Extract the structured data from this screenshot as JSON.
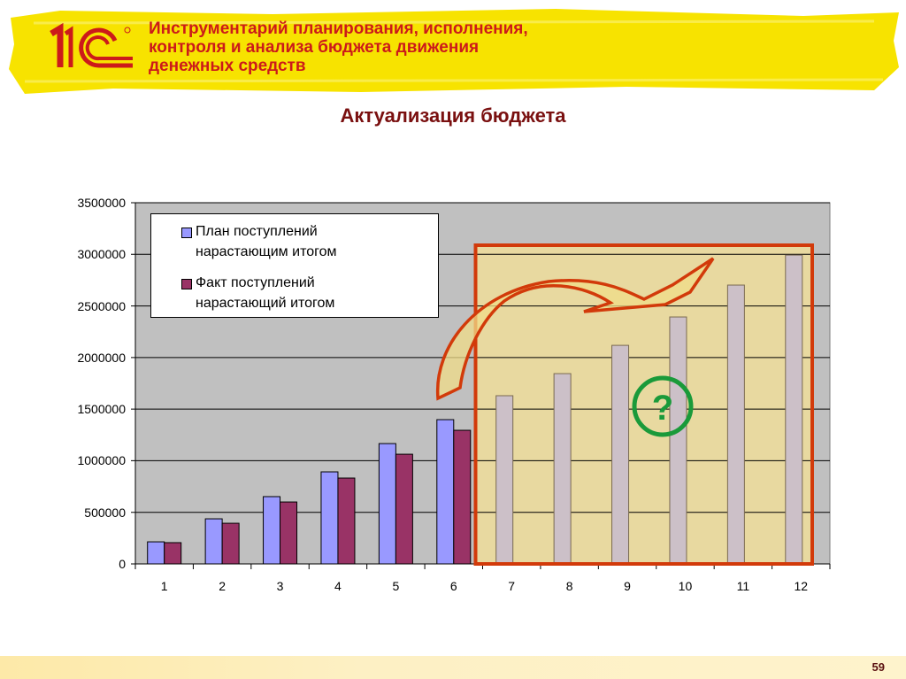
{
  "header": {
    "logo_text": "1С",
    "title_lines": [
      "Инструментарий планирования, исполнения,",
      "контроля и анализа бюджета движения",
      "денежных средств"
    ]
  },
  "slide": {
    "subtitle": "Актуализация бюджета",
    "page_number": "59"
  },
  "colors": {
    "banner": "#f7e300",
    "title_text": "#cc1a1a",
    "subtitle_text": "#7a1010",
    "plan_bar": "#9999ff",
    "fact_bar": "#993366",
    "forecast_bar": "#ccc0c8",
    "plot_bg": "#c0c0c0",
    "highlight_box": "#d23a0a",
    "highlight_fill": "#e8d9a0",
    "question_icon": "#1a9a3a"
  },
  "chart_data": {
    "type": "bar",
    "title": "Актуализация бюджета",
    "xlabel": "",
    "ylabel": "",
    "categories": [
      "1",
      "2",
      "3",
      "4",
      "5",
      "6",
      "7",
      "8",
      "9",
      "10",
      "11",
      "12"
    ],
    "series": [
      {
        "name": "План поступлений нарастающим итогом",
        "values": [
          214000,
          437000,
          652000,
          892000,
          1166000,
          1398000,
          1630000,
          1844000,
          2118000,
          2393000,
          2702000,
          2993000
        ]
      },
      {
        "name": "Факт поступлений нарастающий итогом",
        "values": [
          206000,
          394000,
          600000,
          832000,
          1063000,
          1295000,
          null,
          null,
          null,
          null,
          null,
          null
        ]
      }
    ],
    "ylim": [
      0,
      3500000
    ],
    "yticks": [
      "0",
      "500000",
      "1000000",
      "1500000",
      "2000000",
      "2500000",
      "3000000",
      "3500000"
    ],
    "grid": true,
    "legend_position": "upper-left inside",
    "annotations": [
      "highlight box over periods 7–12 with curved arrow",
      "green question-mark icon"
    ]
  },
  "legend": {
    "items": [
      {
        "line1": "План поступлений",
        "line2": "нарастающим итогом"
      },
      {
        "line1": "Факт поступлений",
        "line2": "нарастающий итогом"
      }
    ]
  }
}
